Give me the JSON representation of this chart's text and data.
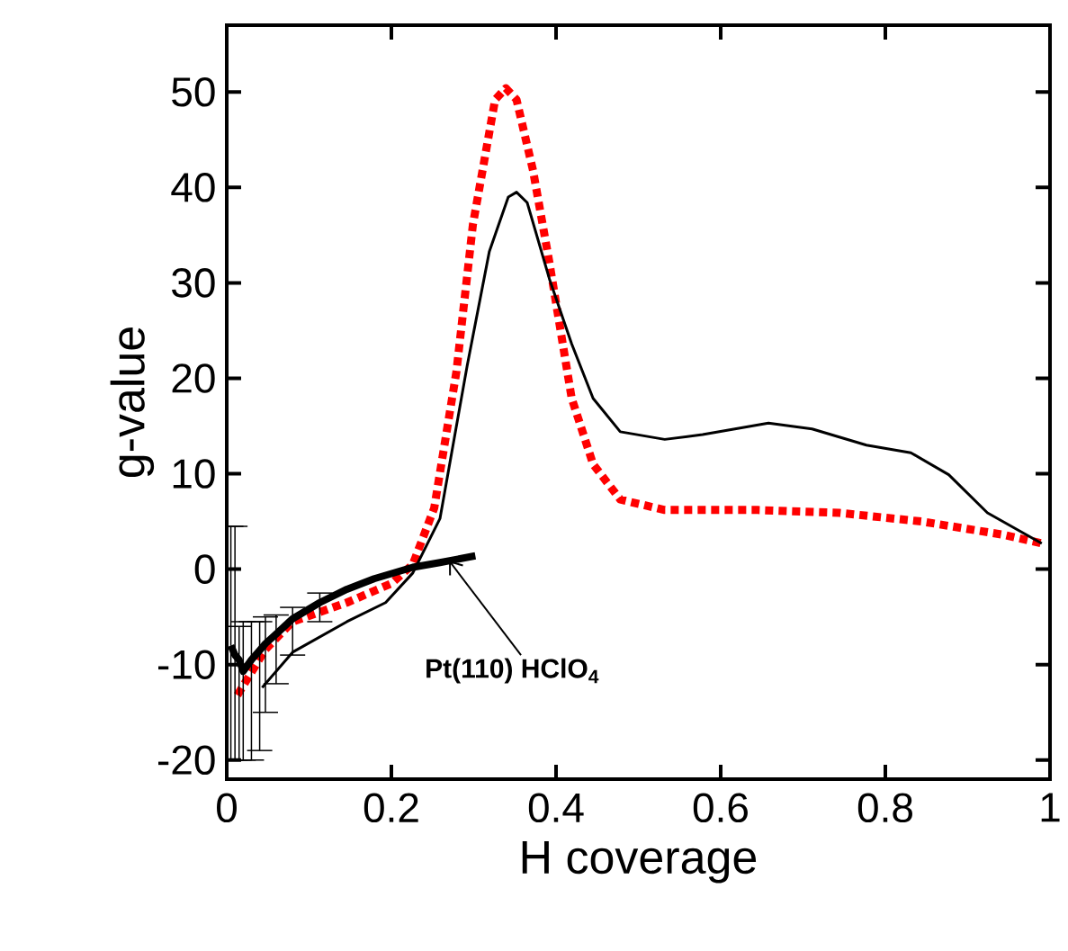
{
  "chart_data": {
    "type": "line",
    "xlabel": "H coverage",
    "ylabel": "g-value",
    "xlim": [
      0,
      1
    ],
    "ylim": [
      -22,
      57
    ],
    "xticks": [
      0,
      0.2,
      0.4,
      0.6,
      0.8,
      1
    ],
    "yticks": [
      -20,
      -10,
      0,
      10,
      20,
      30,
      40,
      50
    ],
    "grid": false,
    "marker": "none",
    "series": [
      {
        "color": "#ff0000",
        "line_style": "dotted",
        "x": [
          0.013,
          0.047,
          0.08,
          0.146,
          0.2,
          0.226,
          0.252,
          0.279,
          0.299,
          0.326,
          0.339,
          0.352,
          0.372,
          0.392,
          0.419,
          0.445,
          0.478,
          0.532,
          0.645,
          0.744,
          0.844,
          0.944,
          0.99
        ],
        "values": [
          -13.2,
          -8.4,
          -5.5,
          -3.5,
          -1.5,
          0.5,
          6.4,
          20.7,
          36.1,
          49.2,
          50.4,
          49.2,
          41.8,
          32.1,
          17.9,
          11,
          7.3,
          6.2,
          6.2,
          5.9,
          5.0,
          3.6,
          2.7
        ]
      },
      {
        "color": "#000000",
        "line_style": "solid",
        "x": [
          0.043,
          0.08,
          0.146,
          0.193,
          0.226,
          0.259,
          0.292,
          0.319,
          0.342,
          0.352,
          0.365,
          0.392,
          0.419,
          0.445,
          0.478,
          0.532,
          0.578,
          0.658,
          0.711,
          0.777,
          0.831,
          0.877,
          0.924,
          0.99
        ],
        "values": [
          -12.4,
          -8.7,
          -5.5,
          -3.5,
          -0.4,
          5.3,
          21.3,
          33.3,
          39,
          39.5,
          38.4,
          30.4,
          23.6,
          17.9,
          14.4,
          13.6,
          14.1,
          15.3,
          14.7,
          13,
          12.2,
          9.9,
          5.9,
          2.7
        ]
      },
      {
        "color": "#000000",
        "line_style": "solid",
        "x": [
          0.005,
          0.01,
          0.015,
          0.02,
          0.03,
          0.04,
          0.047,
          0.06,
          0.08,
          0.113,
          0.146,
          0.179,
          0.226,
          0.259,
          0.302
        ],
        "values": [
          -8,
          -9,
          -9.5,
          -10.7,
          -9.5,
          -8.5,
          -7.8,
          -6.8,
          -5.2,
          -3.5,
          -2.1,
          -1,
          0.2,
          0.7,
          1.4
        ],
        "errors": [
          [
            -20,
            4.5
          ],
          [
            -20,
            4.5
          ],
          [
            -20,
            -6
          ],
          [
            -20,
            -5.5
          ],
          [
            -20,
            -5.5
          ],
          [
            -19,
            -5.5
          ],
          [
            -15,
            -5
          ],
          [
            -12,
            -4.8
          ],
          [
            -9,
            -4
          ],
          [
            -5.5,
            -2.5
          ],
          null,
          null,
          null,
          null,
          null
        ]
      }
    ],
    "annotations": [
      {
        "text": "Pt(110) HClO$_{4}$",
        "x": 0.27,
        "y": 0.9
      }
    ]
  }
}
